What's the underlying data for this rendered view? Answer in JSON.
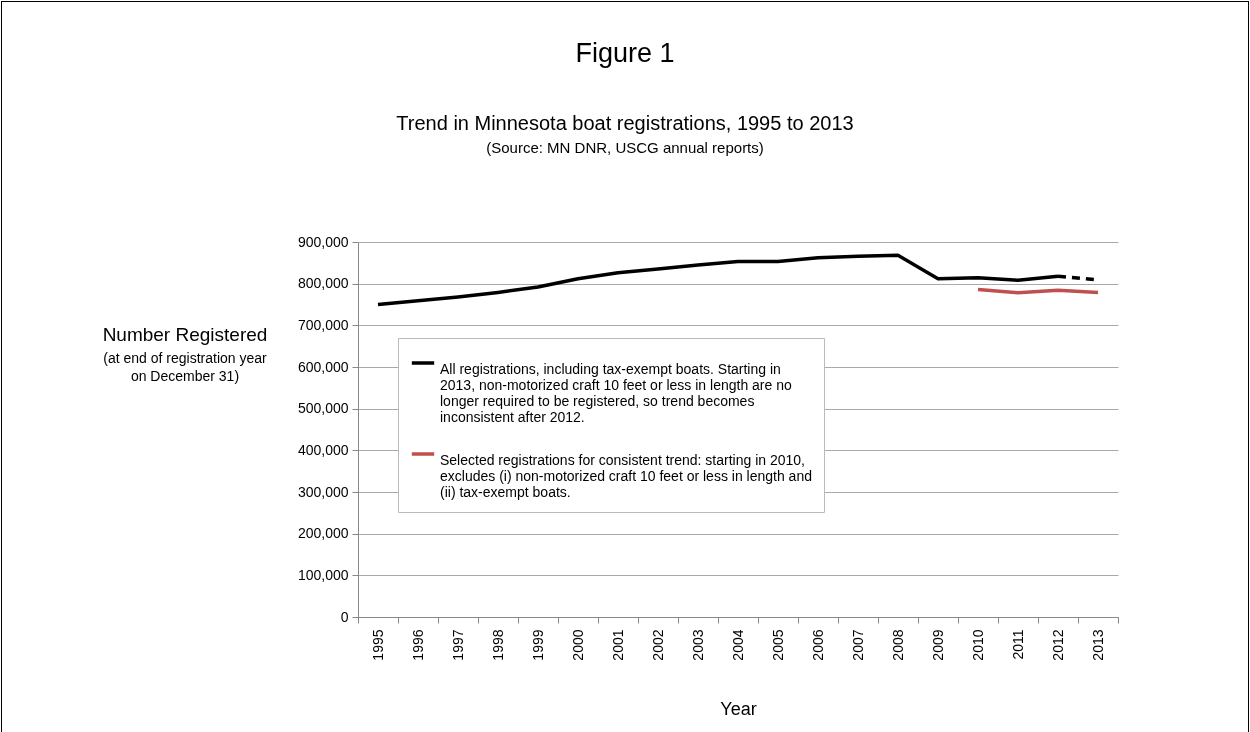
{
  "chart_data": {
    "type": "line",
    "title": "Figure 1",
    "subtitle": "Trend in Minnesota boat registrations, 1995 to 2013",
    "annotations": [
      "(Source: MN DNR, USCG annual reports)",
      "(at end of registration year on December 31)"
    ],
    "xlabel": "Year",
    "ylabel": "Number Registered",
    "categories": [
      "1995",
      "1996",
      "1997",
      "1998",
      "1999",
      "2000",
      "2001",
      "2002",
      "2003",
      "2004",
      "2005",
      "2006",
      "2007",
      "2008",
      "2009",
      "2010",
      "2011",
      "2012",
      "2013"
    ],
    "series": [
      {
        "name": "All registrations, including tax-exempt boats. Starting in 2013, non-motorized craft 10 feet or less in length are no longer required to be registered, so trend becomes inconsistent after 2012.",
        "color": "#000000",
        "line_style": "solid",
        "values": [
          750000,
          759000,
          768000,
          779000,
          792000,
          812000,
          826000,
          835000,
          845000,
          853000,
          853000,
          862000,
          866000,
          868000,
          812000,
          814000,
          808000,
          818000,
          null
        ]
      },
      {
        "color": "#000000",
        "line_style": "dashed",
        "values": [
          null,
          null,
          null,
          null,
          null,
          null,
          null,
          null,
          null,
          null,
          null,
          null,
          null,
          null,
          null,
          null,
          null,
          818000,
          809000
        ]
      },
      {
        "name": "Selected registrations for consistent trend: starting in 2010, excludes (i) non-motorized craft 10 feet or less in length and (ii) tax-exempt boats.",
        "color": "#c0504d",
        "line_style": "solid",
        "values": [
          null,
          null,
          null,
          null,
          null,
          null,
          null,
          null,
          null,
          null,
          null,
          null,
          null,
          null,
          null,
          786000,
          778000,
          784000,
          779000
        ]
      }
    ],
    "ylim": [
      0,
      900000
    ],
    "yticks": [
      0,
      {
        "value": 100000,
        "label": "100,000"
      },
      {
        "value": 200000,
        "label": "200,000"
      },
      {
        "value": 300000,
        "label": "300,000"
      },
      {
        "value": 400000,
        "label": "400,000"
      },
      {
        "value": 500000,
        "label": "500,000"
      },
      {
        "value": 600000,
        "label": "600,000"
      },
      {
        "value": 700000,
        "label": "700,000"
      },
      {
        "value": 800000,
        "label": "800,000"
      },
      {
        "value": 900000,
        "label": "900,000"
      }
    ],
    "grid": "y",
    "legend": "center left",
    "marker": "none"
  }
}
